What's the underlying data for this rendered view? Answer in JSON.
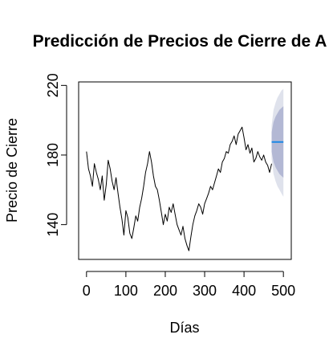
{
  "chart_data": {
    "type": "line",
    "title": "Predicción de Precios de Cierre de A",
    "xlabel": "Días",
    "ylabel": "Precio de Cierre",
    "xlim": [
      -20,
      520
    ],
    "ylim": [
      120,
      222
    ],
    "x_ticks": [
      0,
      100,
      200,
      300,
      400,
      500
    ],
    "y_ticks": [
      140,
      180,
      220
    ],
    "x_tick_labels": [
      "0",
      "100",
      "200",
      "300",
      "400",
      "500"
    ],
    "y_tick_labels": [
      "140",
      "180",
      "220"
    ],
    "grid": false,
    "legend": "none",
    "colors": {
      "history": "#000000",
      "forecast_line": "#1e88e5",
      "band_95": "#dfe2ec",
      "band_80": "#b3b8d4"
    },
    "history": {
      "x": [
        0,
        5,
        10,
        15,
        20,
        25,
        30,
        35,
        40,
        45,
        50,
        55,
        60,
        65,
        70,
        75,
        80,
        85,
        90,
        95,
        100,
        105,
        110,
        115,
        120,
        125,
        130,
        135,
        140,
        145,
        150,
        155,
        160,
        165,
        170,
        175,
        180,
        185,
        190,
        195,
        200,
        205,
        210,
        215,
        220,
        225,
        230,
        235,
        240,
        245,
        250,
        255,
        260,
        265,
        270,
        275,
        280,
        285,
        290,
        295,
        300,
        305,
        310,
        315,
        320,
        325,
        330,
        335,
        340,
        345,
        350,
        355,
        360,
        365,
        370,
        375,
        380,
        385,
        390,
        395,
        400,
        405,
        410,
        415,
        420,
        425,
        430,
        435,
        440,
        445,
        450,
        455,
        460,
        465,
        470
      ],
      "y": [
        182,
        172,
        168,
        162,
        175,
        170,
        166,
        160,
        168,
        154,
        163,
        177,
        172,
        165,
        160,
        167,
        158,
        150,
        143,
        134,
        148,
        144,
        135,
        132,
        138,
        145,
        142,
        150,
        155,
        162,
        170,
        175,
        182,
        176,
        168,
        162,
        160,
        154,
        147,
        140,
        146,
        142,
        150,
        147,
        152,
        146,
        140,
        137,
        134,
        139,
        132,
        128,
        125,
        133,
        140,
        145,
        148,
        152,
        150,
        146,
        152,
        155,
        158,
        162,
        160,
        164,
        168,
        172,
        170,
        176,
        178,
        182,
        181,
        186,
        188,
        191,
        186,
        192,
        194,
        196,
        190,
        183,
        186,
        181,
        184,
        176,
        178,
        182,
        179,
        177,
        180,
        176,
        174,
        170,
        175
      ]
    },
    "forecast": {
      "x": [
        470,
        475,
        480,
        485,
        490,
        495,
        500
      ],
      "mean": [
        187.5,
        187.5,
        187.5,
        187.5,
        187.5,
        187.5,
        187.5
      ],
      "lo80": [
        182,
        176,
        173,
        171,
        169,
        168,
        167
      ],
      "hi80": [
        193,
        199,
        202,
        204,
        206,
        207,
        208
      ],
      "lo95": [
        178,
        169,
        165,
        162,
        160,
        158,
        156
      ],
      "hi95": [
        197,
        206,
        210,
        213,
        215,
        217,
        218
      ]
    }
  }
}
